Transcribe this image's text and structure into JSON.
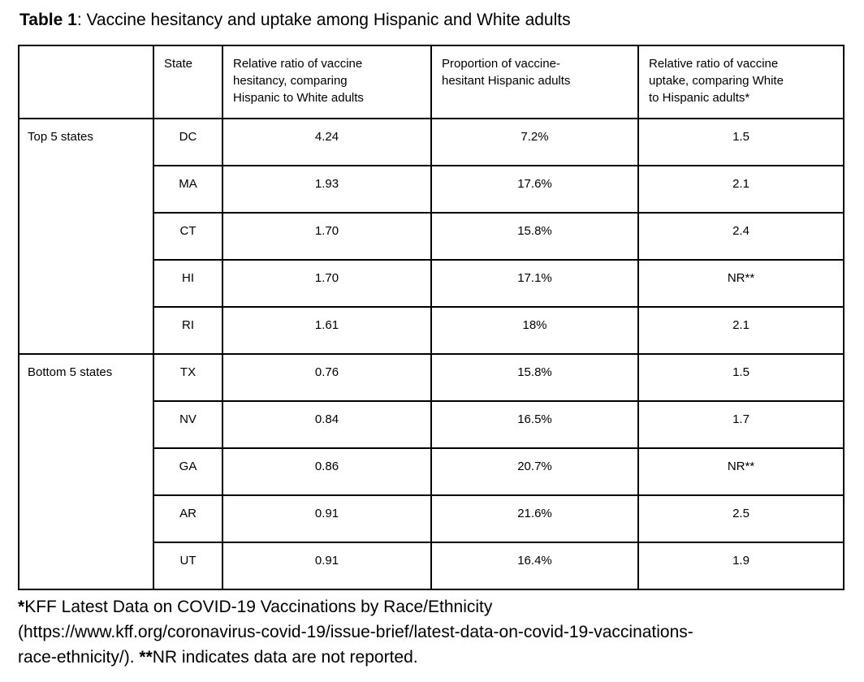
{
  "caption": {
    "label": "Table 1",
    "text": ": Vaccine hesitancy and uptake among Hispanic and White adults"
  },
  "table": {
    "headers": [
      "",
      "State",
      "Relative ratio of vaccine\nhesitancy, comparing\nHispanic to White adults",
      "Proportion of vaccine-\nhesitant Hispanic adults",
      "Relative ratio of vaccine\nuptake, comparing White\nto Hispanic adults*"
    ],
    "groups": [
      {
        "label": "Top 5 states",
        "rows": [
          [
            "DC",
            "4.24",
            "7.2%",
            "1.5"
          ],
          [
            "MA",
            "1.93",
            "17.6%",
            "2.1"
          ],
          [
            "CT",
            "1.70",
            "15.8%",
            "2.4"
          ],
          [
            "HI",
            "1.70",
            "17.1%",
            "NR**"
          ],
          [
            "RI",
            "1.61",
            "18%",
            "2.1"
          ]
        ]
      },
      {
        "label": "Bottom 5 states",
        "rows": [
          [
            "TX",
            "0.76",
            "15.8%",
            "1.5"
          ],
          [
            "NV",
            "0.84",
            "16.5%",
            "1.7"
          ],
          [
            "GA",
            "0.86",
            "20.7%",
            "NR**"
          ],
          [
            "AR",
            "0.91",
            "21.6%",
            "2.5"
          ],
          [
            "UT",
            "0.91",
            "16.4%",
            "1.9"
          ]
        ]
      }
    ]
  },
  "footnote": {
    "line1_marker": "*",
    "line1_text": "KFF Latest Data on COVID-19 Vaccinations by Race/Ethnicity",
    "line2_text": "(https://www.kff.org/coronavirus-covid-19/issue-brief/latest-data-on-covid-19-vaccinations-",
    "line3_pre": "race-ethnicity/). ",
    "line3_marker": "**",
    "line3_text": "NR indicates data are not reported."
  },
  "colors": {
    "text": "#000000",
    "border": "#000000",
    "background": "#ffffff"
  }
}
